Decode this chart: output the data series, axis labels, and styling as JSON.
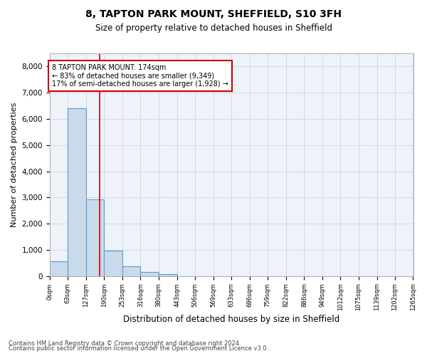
{
  "title1": "8, TAPTON PARK MOUNT, SHEFFIELD, S10 3FH",
  "title2": "Size of property relative to detached houses in Sheffield",
  "xlabel": "Distribution of detached houses by size in Sheffield",
  "ylabel": "Number of detached properties",
  "property_label": "8 TAPTON PARK MOUNT: 174sqm",
  "pct_smaller": 83,
  "n_smaller": "9,349",
  "pct_larger": 17,
  "n_larger": "1,928",
  "bin_edges": [
    0,
    63,
    127,
    190,
    253,
    316,
    380,
    443,
    506,
    569,
    633,
    696,
    759,
    822,
    886,
    949,
    1012,
    1075,
    1139,
    1202,
    1265
  ],
  "bar_heights": [
    570,
    6420,
    2920,
    960,
    360,
    145,
    75,
    0,
    0,
    0,
    0,
    0,
    0,
    0,
    0,
    0,
    0,
    0,
    0,
    0
  ],
  "bar_color": "#c9daea",
  "bar_edge_color": "#5b9bd5",
  "vline_color": "#cc0000",
  "vline_x": 174,
  "ylim": [
    0,
    8500
  ],
  "yticks": [
    0,
    1000,
    2000,
    3000,
    4000,
    5000,
    6000,
    7000,
    8000
  ],
  "grid_color": "#c8d4e3",
  "background_color": "#eef3f9",
  "footer1": "Contains HM Land Registry data © Crown copyright and database right 2024.",
  "footer2": "Contains public sector information licensed under the Open Government Licence v3.0."
}
